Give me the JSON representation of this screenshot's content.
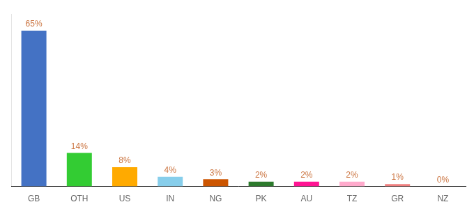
{
  "chart_data": {
    "type": "bar",
    "categories": [
      "GB",
      "OTH",
      "US",
      "IN",
      "NG",
      "PK",
      "AU",
      "TZ",
      "GR",
      "NZ"
    ],
    "values": [
      65,
      14,
      8,
      4,
      3,
      2,
      2,
      2,
      1,
      0
    ],
    "value_labels": [
      "65%",
      "14%",
      "8%",
      "4%",
      "3%",
      "2%",
      "2%",
      "2%",
      "1%",
      "0%"
    ],
    "colors": [
      "#4472c4",
      "#33cc33",
      "#ffaa00",
      "#87ceeb",
      "#cc5500",
      "#2d7a2d",
      "#ff1493",
      "#ffaacc",
      "#f08080",
      "#ffdddd"
    ],
    "ylim": [
      0,
      72
    ],
    "grid": false,
    "data_labels": true,
    "tick_labels": "x"
  }
}
